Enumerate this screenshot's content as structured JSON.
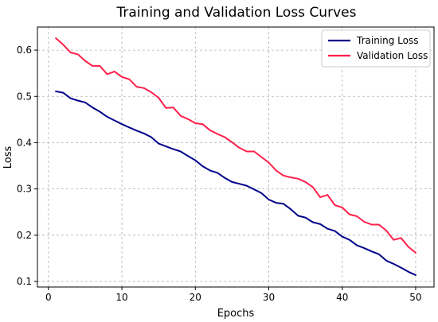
{
  "chart_data": {
    "type": "line",
    "title": "Training and Validation Loss Curves",
    "xlabel": "Epochs",
    "ylabel": "Loss",
    "xlim": [
      -1.5,
      52.5
    ],
    "ylim": [
      0.088,
      0.65
    ],
    "xticks": [
      0,
      10,
      20,
      30,
      40,
      50
    ],
    "yticks": [
      0.1,
      0.2,
      0.3,
      0.4,
      0.5,
      0.6
    ],
    "xtick_labels": [
      "0",
      "10",
      "20",
      "30",
      "40",
      "50"
    ],
    "ytick_labels": [
      "0.1",
      "0.2",
      "0.3",
      "0.4",
      "0.5",
      "0.6"
    ],
    "grid": true,
    "legend_position": "top-right",
    "x": [
      1,
      2,
      3,
      4,
      5,
      6,
      7,
      8,
      9,
      10,
      11,
      12,
      13,
      14,
      15,
      16,
      17,
      18,
      19,
      20,
      21,
      22,
      23,
      24,
      25,
      26,
      27,
      28,
      29,
      30,
      31,
      32,
      33,
      34,
      35,
      36,
      37,
      38,
      39,
      40,
      41,
      42,
      43,
      44,
      45,
      46,
      47,
      48,
      49,
      50
    ],
    "series": [
      {
        "name": "Training Loss",
        "color": "#00008b",
        "values": [
          0.511,
          0.508,
          0.496,
          0.491,
          0.487,
          0.476,
          0.467,
          0.456,
          0.448,
          0.44,
          0.433,
          0.426,
          0.42,
          0.412,
          0.398,
          0.392,
          0.386,
          0.381,
          0.371,
          0.362,
          0.349,
          0.34,
          0.335,
          0.324,
          0.315,
          0.311,
          0.307,
          0.299,
          0.291,
          0.277,
          0.27,
          0.268,
          0.256,
          0.242,
          0.238,
          0.228,
          0.224,
          0.214,
          0.209,
          0.197,
          0.19,
          0.178,
          0.172,
          0.165,
          0.159,
          0.145,
          0.138,
          0.13,
          0.121,
          0.114
        ]
      },
      {
        "name": "Validation Loss",
        "color": "#ff1f4b",
        "values": [
          0.626,
          0.612,
          0.595,
          0.591,
          0.577,
          0.566,
          0.566,
          0.548,
          0.554,
          0.542,
          0.537,
          0.521,
          0.518,
          0.509,
          0.497,
          0.475,
          0.476,
          0.458,
          0.451,
          0.442,
          0.44,
          0.427,
          0.419,
          0.412,
          0.401,
          0.389,
          0.381,
          0.381,
          0.369,
          0.357,
          0.34,
          0.329,
          0.325,
          0.322,
          0.315,
          0.304,
          0.282,
          0.287,
          0.265,
          0.26,
          0.245,
          0.241,
          0.229,
          0.223,
          0.223,
          0.21,
          0.19,
          0.194,
          0.175,
          0.162
        ]
      }
    ]
  }
}
